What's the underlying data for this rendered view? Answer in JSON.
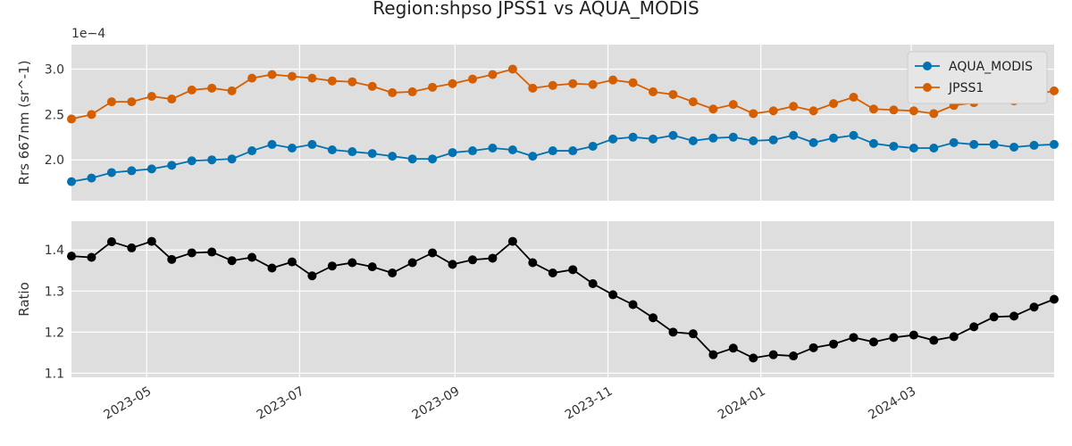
{
  "chart_data": {
    "type": "line",
    "title": "Region:shpso JPSS1 vs AQUA_MODIS",
    "x_tick_labels": [
      "2023-05",
      "2023-07",
      "2023-09",
      "2023-11",
      "2024-01",
      "2024-03"
    ],
    "x_ticks": [
      "2023-05-01",
      "2023-07-01",
      "2023-09-01",
      "2023-11-01",
      "2024-01-01",
      "2024-03-01"
    ],
    "xlim": [
      "2023-04-01",
      "2024-04-27"
    ],
    "x": [
      "2023-04-01",
      "2023-04-09",
      "2023-04-17",
      "2023-04-25",
      "2023-05-03",
      "2023-05-11",
      "2023-05-19",
      "2023-05-27",
      "2023-06-04",
      "2023-06-12",
      "2023-06-20",
      "2023-06-28",
      "2023-07-06",
      "2023-07-14",
      "2023-07-22",
      "2023-07-30",
      "2023-08-07",
      "2023-08-15",
      "2023-08-23",
      "2023-08-31",
      "2023-09-08",
      "2023-09-16",
      "2023-09-24",
      "2023-10-02",
      "2023-10-10",
      "2023-10-18",
      "2023-10-26",
      "2023-11-03",
      "2023-11-11",
      "2023-11-19",
      "2023-11-27",
      "2023-12-05",
      "2023-12-13",
      "2023-12-21",
      "2023-12-29",
      "2024-01-06",
      "2024-01-14",
      "2024-01-22",
      "2024-01-30",
      "2024-02-07",
      "2024-02-15",
      "2024-02-23",
      "2024-03-02",
      "2024-03-10",
      "2024-03-18",
      "2024-03-26",
      "2024-04-03",
      "2024-04-11",
      "2024-04-19",
      "2024-04-27"
    ],
    "panels": [
      {
        "ylabel": "Rrs 667nm (sr^-1)",
        "y_offset_label": "1e−4",
        "ylim": [
          1.55,
          3.27
        ],
        "y_ticks": [
          2.0,
          2.5,
          3.0
        ],
        "y_tick_labels": [
          "2.0",
          "2.5",
          "3.0"
        ],
        "legend_position": "upper right",
        "series": [
          {
            "name": "AQUA_MODIS",
            "color": "#0072b2",
            "values": [
              1.76,
              1.8,
              1.86,
              1.88,
              1.9,
              1.94,
              1.99,
              2.0,
              2.01,
              2.1,
              2.17,
              2.13,
              2.17,
              2.11,
              2.09,
              2.07,
              2.04,
              2.01,
              2.01,
              2.08,
              2.1,
              2.13,
              2.11,
              2.04,
              2.1,
              2.1,
              2.15,
              2.23,
              2.25,
              2.23,
              2.27,
              2.21,
              2.24,
              2.25,
              2.21,
              2.22,
              2.27,
              2.19,
              2.24,
              2.27,
              2.18,
              2.15,
              2.13,
              2.13,
              2.19,
              2.17,
              2.17,
              2.14,
              2.16,
              2.17
            ]
          },
          {
            "name": "JPSS1",
            "color": "#d55e00",
            "values": [
              2.45,
              2.5,
              2.64,
              2.64,
              2.7,
              2.67,
              2.77,
              2.79,
              2.76,
              2.9,
              2.94,
              2.92,
              2.9,
              2.87,
              2.86,
              2.81,
              2.74,
              2.75,
              2.8,
              2.84,
              2.89,
              2.94,
              3.0,
              2.79,
              2.82,
              2.84,
              2.83,
              2.88,
              2.85,
              2.75,
              2.72,
              2.64,
              2.56,
              2.61,
              2.51,
              2.54,
              2.59,
              2.54,
              2.62,
              2.69,
              2.56,
              2.55,
              2.54,
              2.51,
              2.6,
              2.63,
              2.68,
              2.65,
              2.72,
              2.76
            ]
          }
        ]
      },
      {
        "ylabel": "Ratio",
        "ylim": [
          1.09,
          1.47
        ],
        "y_ticks": [
          1.1,
          1.2,
          1.3,
          1.4
        ],
        "y_tick_labels": [
          "1.1",
          "1.2",
          "1.3",
          "1.4"
        ],
        "series": [
          {
            "color": "#000000",
            "values": [
              1.385,
              1.382,
              1.42,
              1.405,
              1.421,
              1.377,
              1.393,
              1.395,
              1.374,
              1.382,
              1.356,
              1.371,
              1.337,
              1.361,
              1.369,
              1.359,
              1.344,
              1.369,
              1.393,
              1.365,
              1.376,
              1.38,
              1.421,
              1.369,
              1.344,
              1.352,
              1.318,
              1.291,
              1.267,
              1.235,
              1.2,
              1.196,
              1.145,
              1.161,
              1.137,
              1.145,
              1.142,
              1.162,
              1.171,
              1.187,
              1.176,
              1.187,
              1.193,
              1.18,
              1.189,
              1.213,
              1.237,
              1.239,
              1.261,
              1.28
            ]
          }
        ]
      }
    ]
  }
}
